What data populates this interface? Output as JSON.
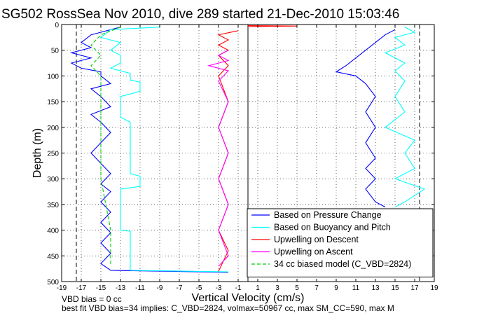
{
  "title": "SG502 RossSea Nov 2010, dive 289 started 21-Dec-2010 15:03:46",
  "footnotes": [
    "VBD bias = 0 cc",
    "best fit VBD bias=34 implies: C_VBD=2824, volmax=50967 cc, max SM_CC=590, max M"
  ],
  "chart_data": {
    "type": "line",
    "xlabel": "Vertical Velocity (cm/s)",
    "ylabel": "Depth (m)",
    "xlim": [
      -19,
      19
    ],
    "ylim": [
      500,
      0
    ],
    "xticks": [
      -19,
      -17,
      -15,
      -13,
      -11,
      -9,
      -7,
      -5,
      -3,
      -1,
      1,
      3,
      5,
      7,
      9,
      11,
      13,
      15,
      17,
      19
    ],
    "yticks": [
      0,
      50,
      100,
      150,
      200,
      250,
      300,
      350,
      400,
      450,
      500
    ],
    "grid": true,
    "legend_position": "bottom-right",
    "reference_lines_x": [
      -17.5,
      17.5
    ],
    "center_divider_x": 0,
    "series": [
      {
        "name": "Based on Pressure Change",
        "color": "#0000ff",
        "style": "solid",
        "points": [
          [
            -13,
            5
          ],
          [
            -16,
            20
          ],
          [
            -17,
            35
          ],
          [
            -16,
            45
          ],
          [
            -18,
            55
          ],
          [
            -16,
            65
          ],
          [
            -18,
            75
          ],
          [
            -17,
            85
          ],
          [
            -15,
            92
          ],
          [
            -15,
            100
          ],
          [
            -14,
            115
          ],
          [
            -16,
            125
          ],
          [
            -15,
            140
          ],
          [
            -14,
            160
          ],
          [
            -16,
            175
          ],
          [
            -15,
            190
          ],
          [
            -14,
            210
          ],
          [
            -15,
            230
          ],
          [
            -16,
            250
          ],
          [
            -15,
            270
          ],
          [
            -14,
            290
          ],
          [
            -15,
            310
          ],
          [
            -14,
            325
          ],
          [
            -15,
            345
          ],
          [
            -14,
            365
          ],
          [
            -15,
            385
          ],
          [
            -14,
            405
          ],
          [
            -15,
            425
          ],
          [
            -14,
            445
          ],
          [
            -15,
            465
          ],
          [
            -14,
            478
          ],
          [
            -2,
            482
          ]
        ]
      },
      {
        "name": "Based on Buoyancy and Pitch",
        "color": "#00ffff",
        "style": "solid",
        "points": [
          [
            -9,
            5
          ],
          [
            -14,
            10
          ],
          [
            -15,
            25
          ],
          [
            -13,
            35
          ],
          [
            -14,
            50
          ],
          [
            -13,
            60
          ],
          [
            -13,
            75
          ],
          [
            -14,
            85
          ],
          [
            -12,
            95
          ],
          [
            -12,
            108
          ],
          [
            -11,
            112
          ],
          [
            -11,
            130
          ],
          [
            -13,
            140
          ],
          [
            -13,
            180
          ],
          [
            -12,
            190
          ],
          [
            -12,
            290
          ],
          [
            -11,
            295
          ],
          [
            -11,
            315
          ],
          [
            -13,
            320
          ],
          [
            -13,
            400
          ],
          [
            -12,
            402
          ],
          [
            -12,
            478
          ],
          [
            -2,
            481
          ]
        ]
      },
      {
        "name": "Upwelling on Descent",
        "color": "#ff0000",
        "style": "solid",
        "points": [
          [
            -1,
            12
          ],
          [
            -3,
            20
          ],
          [
            -2,
            30
          ],
          [
            -3,
            40
          ],
          [
            -2,
            50
          ],
          [
            -3,
            60
          ],
          [
            -2,
            80
          ],
          [
            -3,
            100
          ],
          [
            -2,
            150
          ],
          [
            -3,
            200
          ],
          [
            -2,
            250
          ],
          [
            -3,
            300
          ],
          [
            -2,
            350
          ],
          [
            -3,
            400
          ],
          [
            -2,
            440
          ],
          [
            -3,
            480
          ]
        ]
      },
      {
        "name": "Upwelling on Ascent",
        "color": "#ff00ff",
        "style": "solid",
        "points": [
          [
            -2,
            50
          ],
          [
            -3,
            60
          ],
          [
            -2,
            70
          ],
          [
            -4,
            80
          ],
          [
            -2,
            90
          ],
          [
            -3,
            110
          ],
          [
            -2,
            150
          ],
          [
            -3,
            200
          ],
          [
            -2,
            250
          ],
          [
            -3,
            300
          ],
          [
            -2,
            350
          ],
          [
            -3,
            400
          ],
          [
            -2,
            450
          ],
          [
            -3,
            470
          ]
        ]
      },
      {
        "name": "34 cc biased model (C_VBD=2824)",
        "color": "#00cc00",
        "style": "dashed",
        "points": [
          [
            -13,
            5
          ],
          [
            -15,
            20
          ],
          [
            -16,
            40
          ],
          [
            -15,
            60
          ],
          [
            -16,
            80
          ],
          [
            -15,
            100
          ],
          [
            -15,
            200
          ],
          [
            -15,
            300
          ],
          [
            -14,
            400
          ],
          [
            -14,
            470
          ]
        ]
      }
    ],
    "ascent_series": [
      {
        "name": "Based on Pressure Change",
        "color": "#0000ff",
        "points": [
          [
            15,
            10
          ],
          [
            14,
            20
          ],
          [
            13,
            35
          ],
          [
            12,
            50
          ],
          [
            11,
            65
          ],
          [
            10,
            80
          ],
          [
            9,
            92
          ],
          [
            11,
            100
          ],
          [
            12,
            115
          ],
          [
            13,
            140
          ],
          [
            12,
            170
          ],
          [
            13,
            200
          ],
          [
            12,
            230
          ],
          [
            13,
            260
          ],
          [
            12,
            280
          ],
          [
            13,
            300
          ],
          [
            12,
            320
          ],
          [
            13,
            345
          ],
          [
            14,
            355
          ]
        ]
      },
      {
        "name": "Based on Buoyancy and Pitch",
        "color": "#00ffff",
        "points": [
          [
            16,
            5
          ],
          [
            17,
            15
          ],
          [
            15,
            25
          ],
          [
            16,
            40
          ],
          [
            14,
            55
          ],
          [
            16,
            75
          ],
          [
            15,
            90
          ],
          [
            16,
            110
          ],
          [
            15,
            140
          ],
          [
            16,
            170
          ],
          [
            14,
            200
          ],
          [
            17,
            225
          ],
          [
            16,
            250
          ],
          [
            17,
            280
          ],
          [
            15,
            300
          ],
          [
            18,
            320
          ],
          [
            16,
            345
          ],
          [
            15,
            355
          ]
        ]
      },
      {
        "name": "Upwelling on Descent",
        "color": "#ff0000",
        "points": [
          [
            0,
            2
          ],
          [
            5,
            3
          ],
          [
            0,
            4
          ]
        ]
      }
    ]
  }
}
